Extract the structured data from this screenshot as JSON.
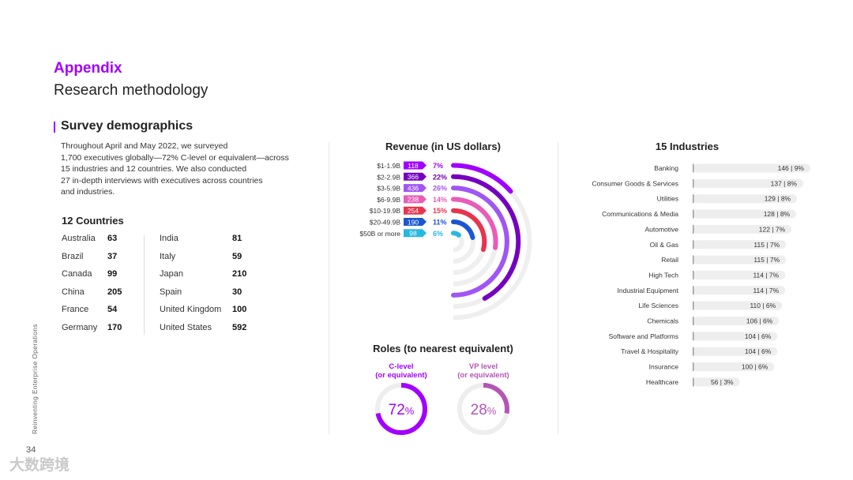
{
  "header": {
    "section": "Appendix",
    "title": "Research methodology"
  },
  "survey": {
    "title": "Survey demographics",
    "intro_lines": [
      "Throughout April and May 2022, we surveyed",
      "1,700 executives globally—72% C-level or equivalent—across",
      "15 industries and 12 countries. We also conducted",
      "27 in-depth interviews with executives across countries",
      "and industries."
    ]
  },
  "countries": {
    "title": "12 Countries",
    "left": [
      {
        "name": "Australia",
        "value": "63"
      },
      {
        "name": "Brazil",
        "value": "37"
      },
      {
        "name": "Canada",
        "value": "99"
      },
      {
        "name": "China",
        "value": "205"
      },
      {
        "name": "France",
        "value": "54"
      },
      {
        "name": "Germany",
        "value": "170"
      }
    ],
    "right": [
      {
        "name": "India",
        "value": "81"
      },
      {
        "name": "Italy",
        "value": "59"
      },
      {
        "name": "Japan",
        "value": "210"
      },
      {
        "name": "Spain",
        "value": "30"
      },
      {
        "name": "United Kingdom",
        "value": "100"
      },
      {
        "name": "United States",
        "value": "592"
      }
    ]
  },
  "chart_data": [
    {
      "type": "radial-bar",
      "title": "Revenue (in US dollars)",
      "categories": [
        "$1-1.9B",
        "$2-2.9B",
        "$3-5.9B",
        "$6-9.9B",
        "$10-19.9B",
        "$20-49.9B",
        "$50B or more"
      ],
      "values": [
        118,
        366,
        436,
        238,
        254,
        190,
        98
      ],
      "percent_labels": [
        "7%",
        "22%",
        "26%",
        "14%",
        "15%",
        "11%",
        "6%"
      ],
      "colors": [
        "#a100ff",
        "#7500c0",
        "#a055f5",
        "#e95cb8",
        "#e8344e",
        "#1b57d2",
        "#27b8e0"
      ]
    },
    {
      "type": "donut",
      "title": "Roles (to nearest equivalent)",
      "series": [
        {
          "label_lines": [
            "C-level",
            "(or equivalent)"
          ],
          "value": 72,
          "number": "72",
          "unit": "%",
          "color": "#a100ff",
          "text_color": "#a100ff"
        },
        {
          "label_lines": [
            "VP level",
            "(or equivalent)"
          ],
          "value": 28,
          "number": "28",
          "unit": "%",
          "color": "#b455b6",
          "text_color": "#b455b6"
        }
      ]
    },
    {
      "type": "bar",
      "title": "15 Industries",
      "categories": [
        "Banking",
        "Consumer Goods & Services",
        "Utilities",
        "Communications & Media",
        "Automotive",
        "Oil & Gas",
        "Retail",
        "High Tech",
        "Industrial Equipment",
        "Life Sciences",
        "Chemicals",
        "Software and Platforms",
        "Travel & Hospitality",
        "Insurance",
        "Healthcare"
      ],
      "values": [
        146,
        137,
        129,
        128,
        122,
        115,
        115,
        114,
        114,
        110,
        106,
        104,
        104,
        100,
        56
      ],
      "percent_labels": [
        "9%",
        "8%",
        "8%",
        "8%",
        "7%",
        "7%",
        "7%",
        "7%",
        "7%",
        "6%",
        "6%",
        "6%",
        "6%",
        "6%",
        "3%"
      ]
    }
  ],
  "footer": {
    "sidebar_text": "Reinventing Enterprise Operations",
    "page_number": "34",
    "watermark": "大数跨境"
  }
}
